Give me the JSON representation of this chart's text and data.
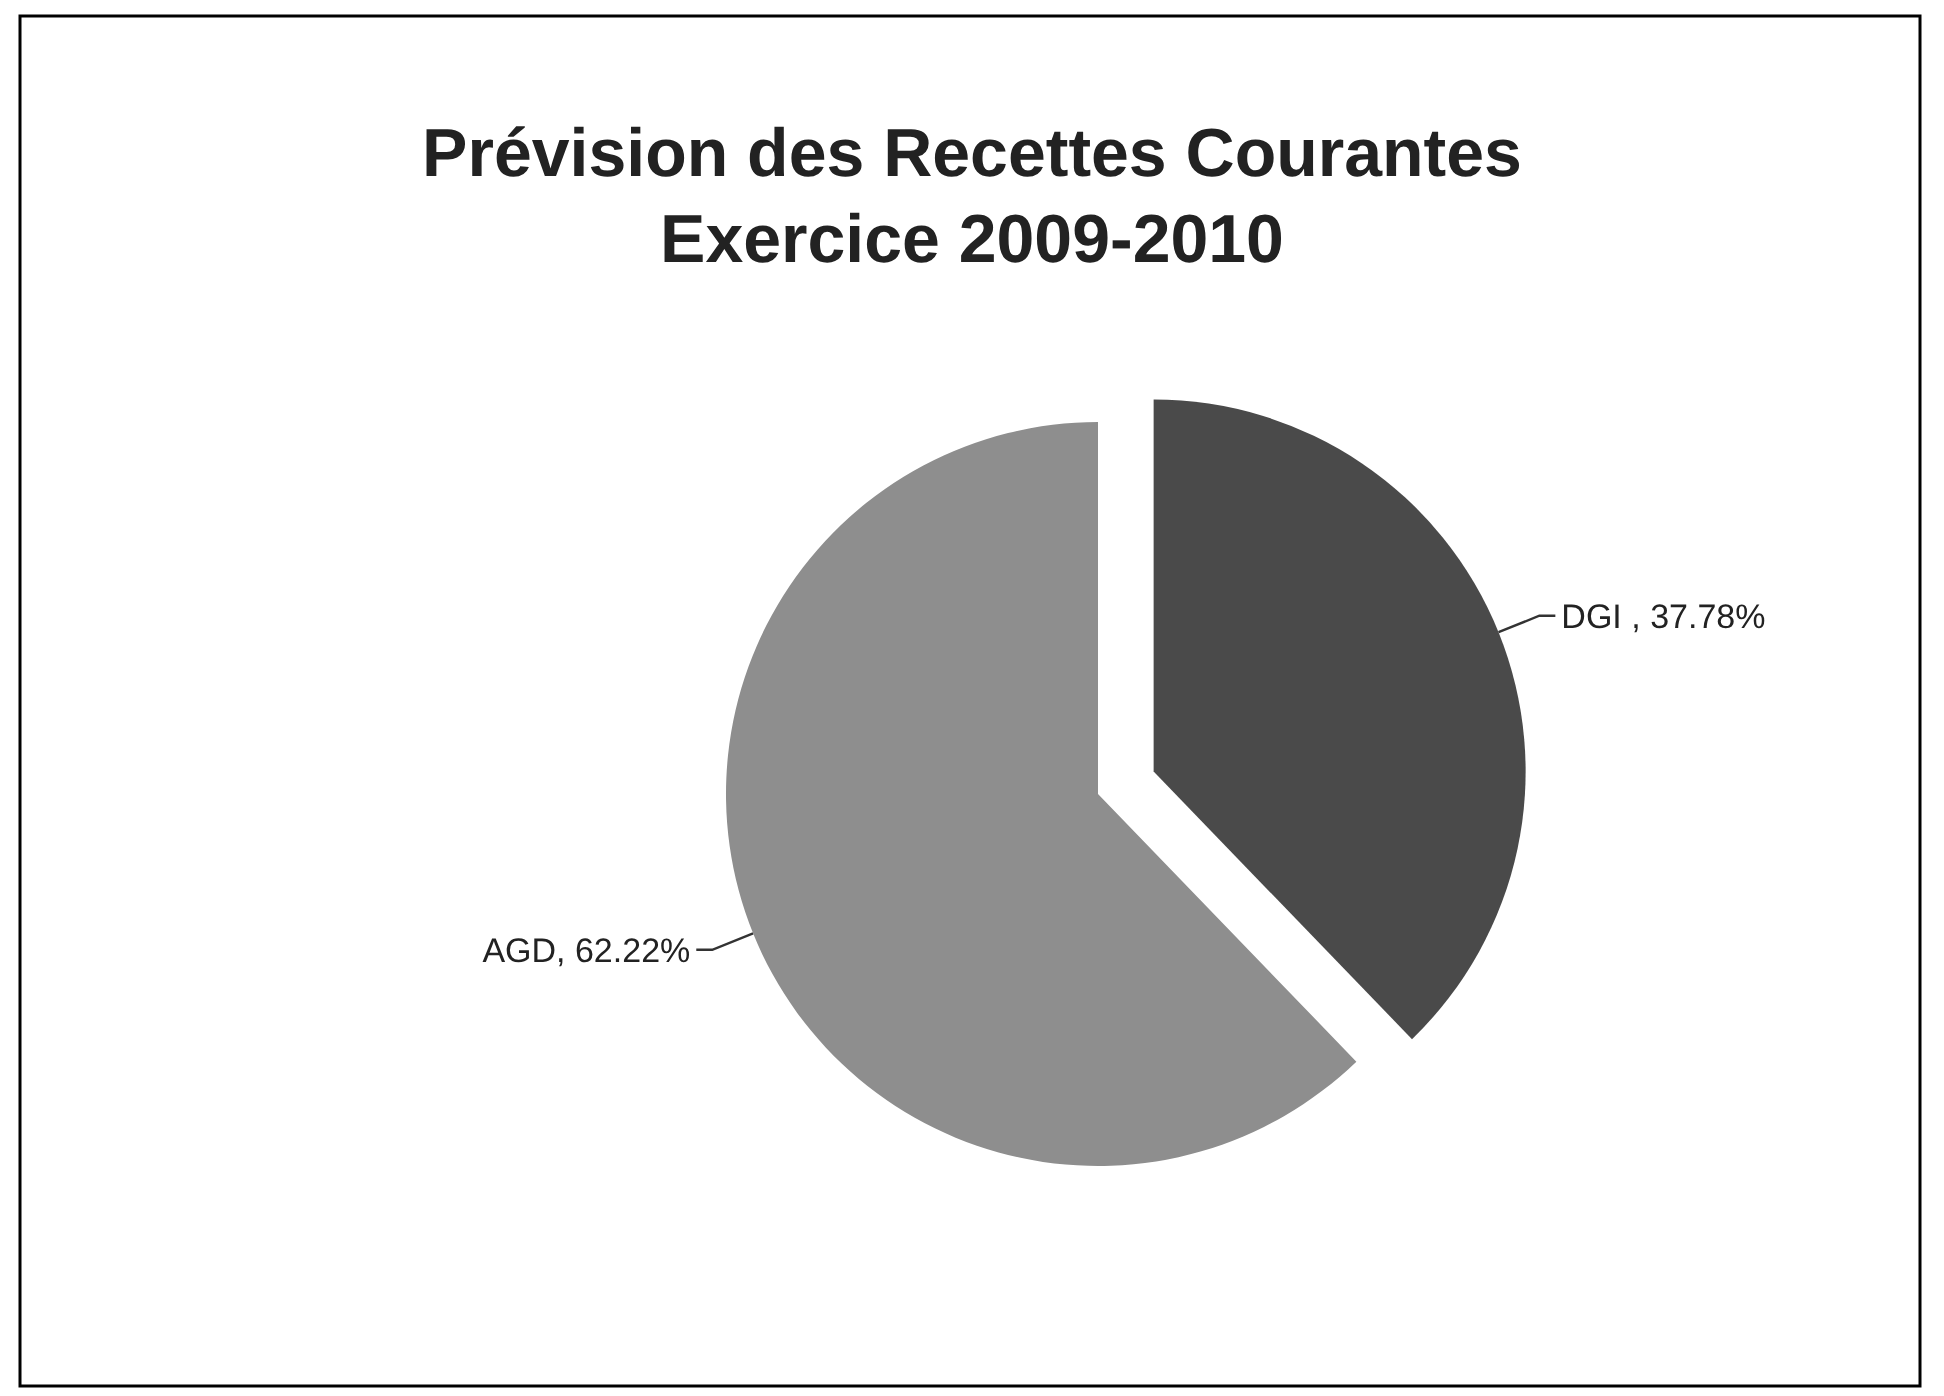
{
  "chart_data": {
    "type": "pie",
    "title": "Prévision des Recettes Courantes\nExercice 2009-2010",
    "categories": [
      "DGI",
      "AGD"
    ],
    "values": [
      37.78,
      62.22
    ],
    "colors": [
      "#4a4a4a",
      "#8e8e8e"
    ],
    "value_labels": [
      " , 37.78%",
      ", 62.22%"
    ],
    "legend": false
  }
}
